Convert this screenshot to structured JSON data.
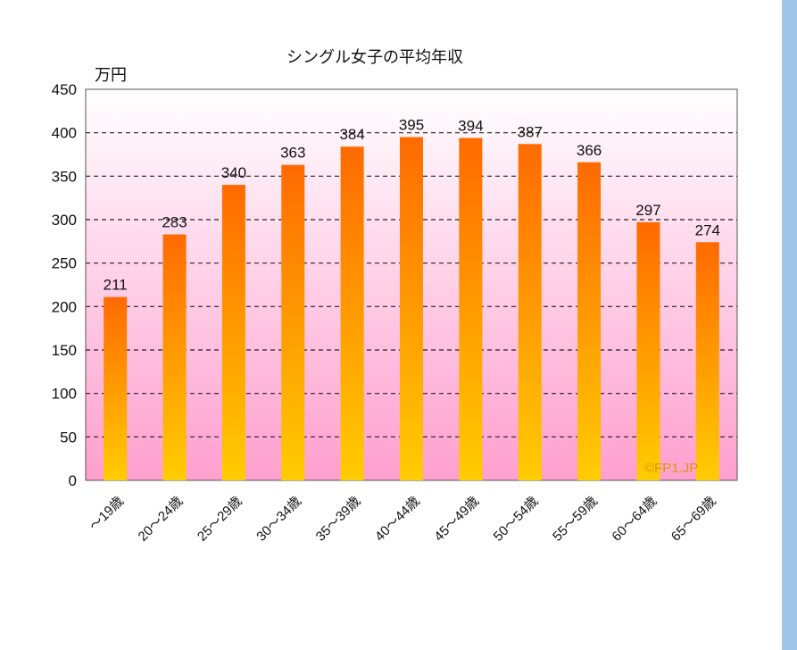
{
  "chart_data": {
    "type": "bar",
    "title": "シングル女子の平均年収",
    "ylabel": "万円",
    "xlabel": "",
    "ylim": [
      0,
      450
    ],
    "yticks": [
      0,
      50,
      100,
      150,
      200,
      250,
      300,
      350,
      400,
      450
    ],
    "categories": [
      "～19歳",
      "20～24歳",
      "25～29歳",
      "30～34歳",
      "35～39歳",
      "40～44歳",
      "45～49歳",
      "50～54歳",
      "55～59歳",
      "60～64歳",
      "65～69歳"
    ],
    "values": [
      211,
      283,
      340,
      363,
      384,
      395,
      394,
      387,
      366,
      297,
      274
    ],
    "grid": "dashed horizontal",
    "watermark": "©FP1.JP",
    "colors": {
      "bar_top": "#ff6a00",
      "bar_bottom": "#ffcc00",
      "bg_top": "#ffffff",
      "bg_bottom": "#ff9fce",
      "watermark": "#d79a00"
    }
  }
}
